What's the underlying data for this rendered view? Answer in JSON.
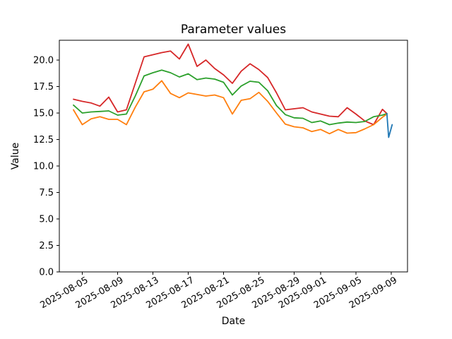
{
  "chart": {
    "title": "Parameter values",
    "xlabel": "Date",
    "ylabel": "Value"
  },
  "chart_data": {
    "type": "line",
    "title": "Parameter values",
    "xlabel": "Date",
    "ylabel": "Value",
    "grid": false,
    "legend": "none",
    "x_unit": "days since 2025-08-04",
    "xlim": [
      -1.6,
      37.84
    ],
    "ylim": [
      0,
      21.87
    ],
    "y_ticks": [
      0.0,
      2.5,
      5.0,
      7.5,
      10.0,
      12.5,
      15.0,
      17.5,
      20.0
    ],
    "x_tick_offsets": [
      1,
      5,
      9,
      13,
      17,
      21,
      25,
      28,
      32,
      36
    ],
    "x_tick_labels": [
      "2025-08-05",
      "2025-08-09",
      "2025-08-13",
      "2025-08-17",
      "2025-08-21",
      "2025-08-25",
      "2025-08-29",
      "2025-09-01",
      "2025-09-05",
      "2025-09-09"
    ],
    "series": [
      {
        "name": "red",
        "color": "#d62728",
        "x": [
          0,
          1,
          2,
          3,
          4,
          5,
          6,
          7,
          8,
          9,
          10,
          11,
          12,
          13,
          14,
          15,
          16,
          17,
          18,
          19,
          20,
          21,
          22,
          23,
          24,
          25,
          26,
          27,
          28,
          29,
          30,
          31,
          32,
          33,
          34,
          35,
          35.5
        ],
        "values": [
          16.3,
          16.1,
          15.95,
          15.65,
          16.5,
          15.1,
          15.3,
          17.8,
          20.3,
          20.5,
          20.7,
          20.85,
          20.1,
          21.5,
          19.4,
          20.0,
          19.2,
          18.6,
          17.8,
          18.95,
          19.65,
          19.1,
          18.35,
          16.9,
          15.3,
          15.4,
          15.5,
          15.1,
          14.9,
          14.7,
          14.65,
          15.5,
          14.9,
          14.25,
          13.9,
          15.35,
          14.95
        ]
      },
      {
        "name": "green",
        "color": "#2ca02c",
        "x": [
          0,
          1,
          2,
          3,
          4,
          5,
          6,
          7,
          8,
          9,
          10,
          11,
          12,
          13,
          14,
          15,
          16,
          17,
          18,
          19,
          20,
          21,
          22,
          23,
          24,
          25,
          26,
          27,
          28,
          29,
          30,
          31,
          32,
          33,
          34,
          35,
          35.5
        ],
        "values": [
          15.75,
          15.0,
          15.1,
          15.15,
          15.2,
          14.8,
          14.9,
          16.6,
          18.5,
          18.8,
          19.05,
          18.8,
          18.4,
          18.7,
          18.15,
          18.3,
          18.2,
          17.9,
          16.7,
          17.55,
          18.0,
          17.9,
          17.1,
          15.7,
          14.85,
          14.55,
          14.5,
          14.1,
          14.25,
          13.9,
          14.05,
          14.15,
          14.1,
          14.2,
          14.65,
          14.8,
          14.95
        ]
      },
      {
        "name": "orange",
        "color": "#ff7f0e",
        "x": [
          0,
          1,
          2,
          3,
          4,
          5,
          6,
          7,
          8,
          9,
          10,
          11,
          12,
          13,
          14,
          15,
          16,
          17,
          18,
          19,
          20,
          21,
          22,
          23,
          24,
          25,
          26,
          27,
          28,
          29,
          30,
          31,
          32,
          33,
          34,
          35,
          35.5
        ],
        "values": [
          15.3,
          13.9,
          14.45,
          14.65,
          14.4,
          14.4,
          13.9,
          15.55,
          17.0,
          17.25,
          18.05,
          16.85,
          16.45,
          16.9,
          16.75,
          16.6,
          16.7,
          16.45,
          14.9,
          16.2,
          16.35,
          16.95,
          16.1,
          15.0,
          13.95,
          13.7,
          13.6,
          13.25,
          13.45,
          13.05,
          13.45,
          13.1,
          13.15,
          13.5,
          13.9,
          14.6,
          14.9
        ]
      },
      {
        "name": "blue",
        "color": "#1f77b4",
        "x": [
          35.5,
          35.7,
          36.1
        ],
        "values": [
          14.95,
          12.7,
          13.9
        ]
      }
    ]
  }
}
